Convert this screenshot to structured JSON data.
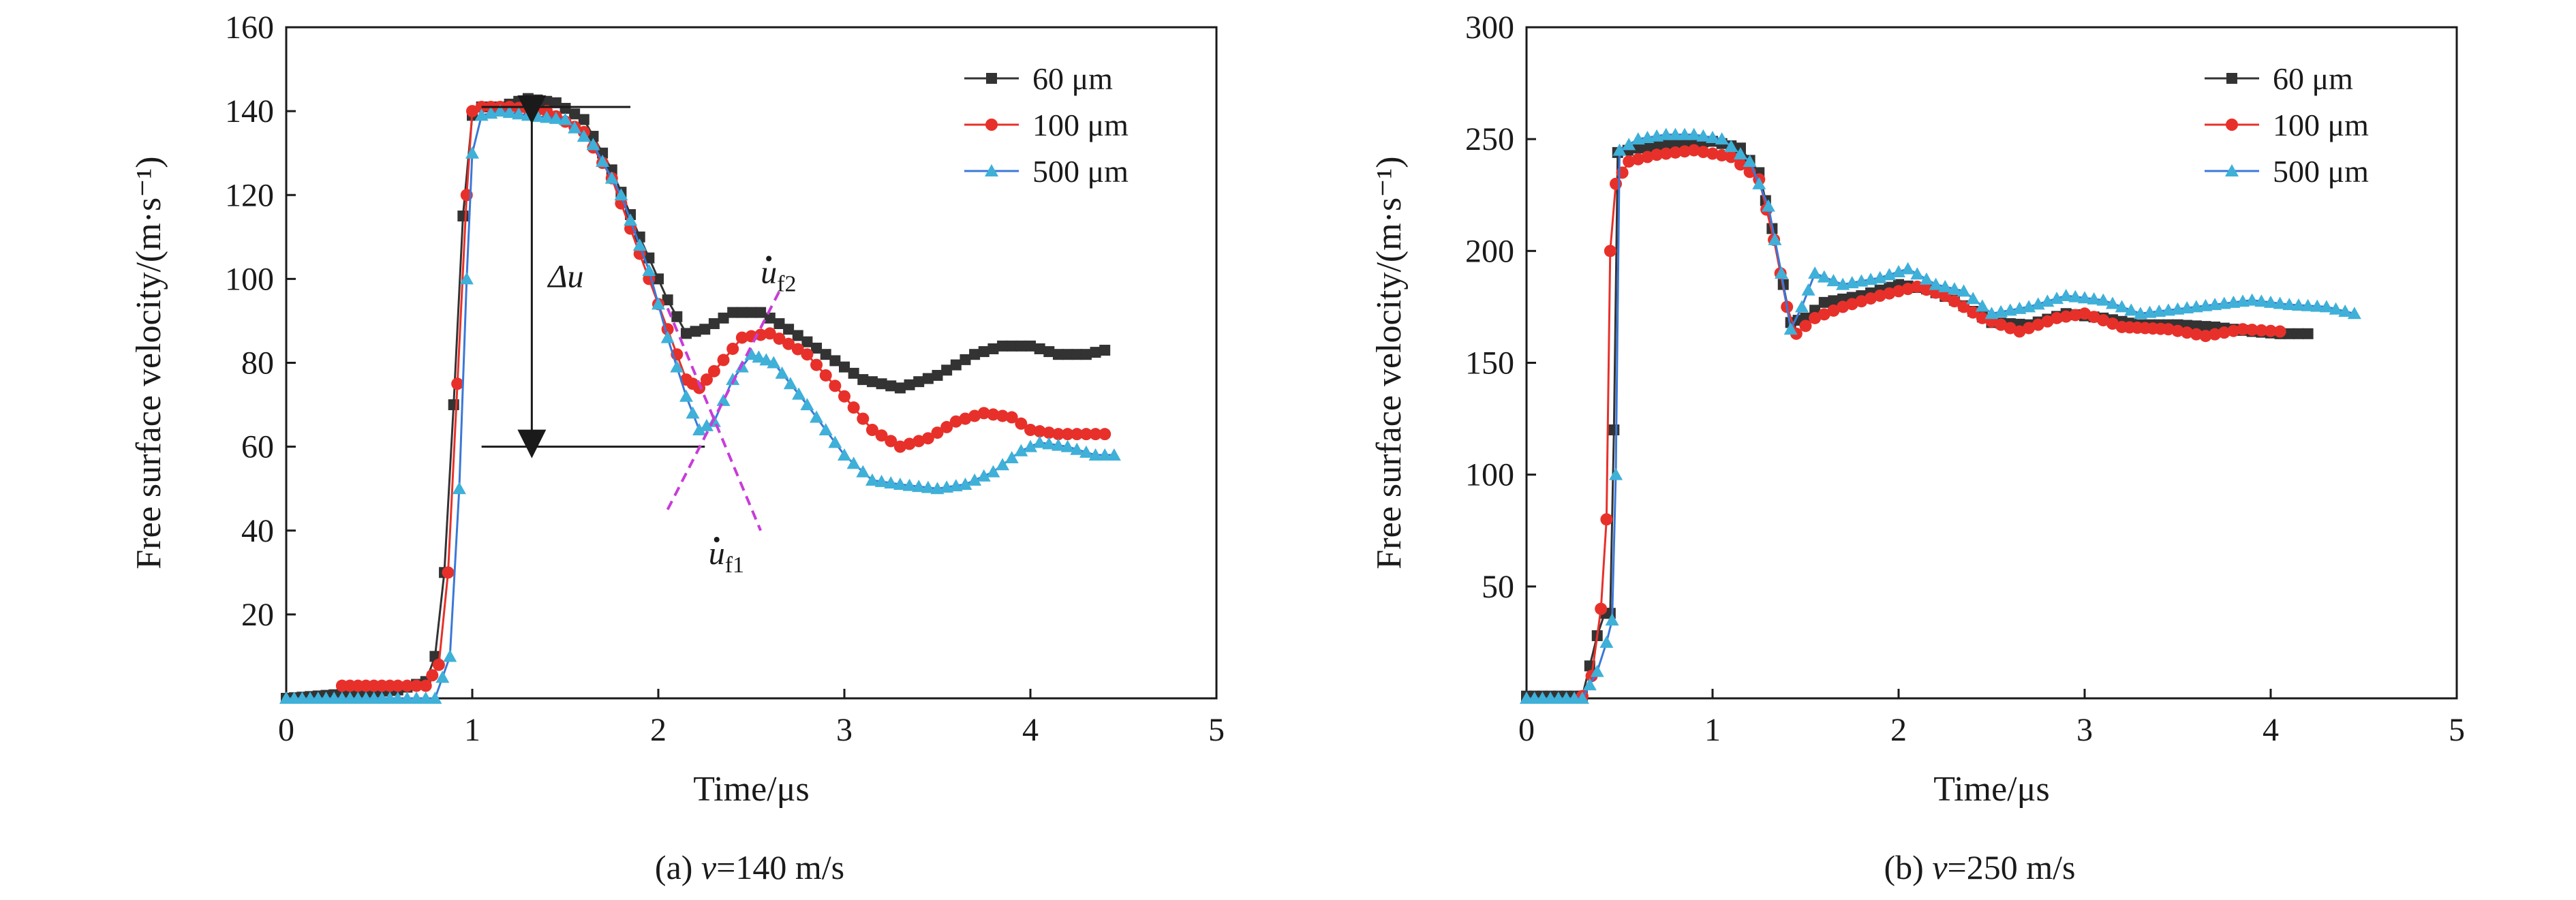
{
  "chart_data": [
    {
      "type": "line",
      "panel": "a",
      "caption_prefix": "(a) ",
      "caption_var": "v",
      "caption_rest": "=140 m/s",
      "xlabel": "Time/μs",
      "ylabel": "Free surface velocity/(m·s⁻¹)",
      "xlim": [
        0,
        5
      ],
      "ylim": [
        0,
        160
      ],
      "xticks": [
        0,
        1,
        2,
        3,
        4,
        5
      ],
      "yticks": [
        20,
        40,
        60,
        80,
        100,
        120,
        140,
        160
      ],
      "legend_position": "top-right",
      "series": [
        {
          "name": "60 μm",
          "marker": "square",
          "color": "#333333",
          "points": [
            [
              0.0,
              0
            ],
            [
              0.3,
              1
            ],
            [
              0.6,
              2
            ],
            [
              0.75,
              4
            ],
            [
              0.8,
              10
            ],
            [
              0.85,
              30
            ],
            [
              0.9,
              70
            ],
            [
              0.95,
              115
            ],
            [
              1.0,
              139
            ],
            [
              1.05,
              141
            ],
            [
              1.15,
              141
            ],
            [
              1.3,
              143
            ],
            [
              1.45,
              142
            ],
            [
              1.6,
              138
            ],
            [
              1.75,
              126
            ],
            [
              1.9,
              110
            ],
            [
              2.05,
              95
            ],
            [
              2.15,
              87
            ],
            [
              2.25,
              88
            ],
            [
              2.4,
              92
            ],
            [
              2.55,
              92
            ],
            [
              2.7,
              88
            ],
            [
              2.9,
              82
            ],
            [
              3.1,
              76
            ],
            [
              3.3,
              74
            ],
            [
              3.5,
              77
            ],
            [
              3.7,
              82
            ],
            [
              3.85,
              84
            ],
            [
              4.0,
              84
            ],
            [
              4.15,
              82
            ],
            [
              4.3,
              82
            ],
            [
              4.4,
              83
            ]
          ]
        },
        {
          "name": "100 μm",
          "marker": "circle",
          "color": "#e8302a",
          "points": [
            [
              0.3,
              3
            ],
            [
              0.6,
              3
            ],
            [
              0.75,
              3
            ],
            [
              0.82,
              8
            ],
            [
              0.87,
              30
            ],
            [
              0.92,
              75
            ],
            [
              0.97,
              120
            ],
            [
              1.0,
              140
            ],
            [
              1.05,
              141
            ],
            [
              1.2,
              141
            ],
            [
              1.4,
              140
            ],
            [
              1.6,
              135
            ],
            [
              1.75,
              124
            ],
            [
              1.9,
              106
            ],
            [
              2.05,
              88
            ],
            [
              2.15,
              76
            ],
            [
              2.22,
              74
            ],
            [
              2.3,
              78
            ],
            [
              2.45,
              86
            ],
            [
              2.6,
              87
            ],
            [
              2.8,
              82
            ],
            [
              3.0,
              72
            ],
            [
              3.15,
              64
            ],
            [
              3.3,
              60
            ],
            [
              3.45,
              62
            ],
            [
              3.6,
              66
            ],
            [
              3.75,
              68
            ],
            [
              3.9,
              67
            ],
            [
              4.0,
              64
            ],
            [
              4.15,
              63
            ],
            [
              4.3,
              63
            ],
            [
              4.4,
              63
            ]
          ]
        },
        {
          "name": "500 μm",
          "marker": "triangle",
          "color": "#3fb0d8",
          "lineColor": "#3a78d8",
          "points": [
            [
              0.0,
              0
            ],
            [
              0.3,
              0
            ],
            [
              0.6,
              0
            ],
            [
              0.8,
              0
            ],
            [
              0.88,
              10
            ],
            [
              0.93,
              50
            ],
            [
              0.97,
              100
            ],
            [
              1.0,
              130
            ],
            [
              1.05,
              139
            ],
            [
              1.15,
              140
            ],
            [
              1.3,
              139
            ],
            [
              1.5,
              138
            ],
            [
              1.65,
              132
            ],
            [
              1.8,
              120
            ],
            [
              1.95,
              102
            ],
            [
              2.05,
              86
            ],
            [
              2.15,
              72
            ],
            [
              2.22,
              64
            ],
            [
              2.3,
              66
            ],
            [
              2.4,
              76
            ],
            [
              2.5,
              82
            ],
            [
              2.62,
              80
            ],
            [
              2.8,
              70
            ],
            [
              3.0,
              58
            ],
            [
              3.15,
              52
            ],
            [
              3.3,
              51
            ],
            [
              3.5,
              50
            ],
            [
              3.65,
              51
            ],
            [
              3.8,
              54
            ],
            [
              3.95,
              59
            ],
            [
              4.05,
              61
            ],
            [
              4.2,
              60
            ],
            [
              4.35,
              58
            ],
            [
              4.45,
              58
            ]
          ]
        }
      ],
      "annotations": {
        "delta_u": "Δu",
        "uf2_main": "u",
        "uf2_sub": "f2",
        "uf1_main": "u",
        "uf1_sub": "f1"
      }
    },
    {
      "type": "line",
      "panel": "b",
      "caption_prefix": "(b) ",
      "caption_var": "v",
      "caption_rest": "=250 m/s",
      "xlabel": "Time/μs",
      "ylabel": "Free surface velocity/(m·s⁻¹)",
      "xlim": [
        0,
        5
      ],
      "ylim": [
        0,
        300
      ],
      "xticks": [
        0,
        1,
        2,
        3,
        4,
        5
      ],
      "yticks": [
        50,
        100,
        150,
        200,
        250,
        300
      ],
      "legend_position": "top-right",
      "series": [
        {
          "name": "60 μm",
          "marker": "square",
          "color": "#333333",
          "points": [
            [
              0.0,
              1
            ],
            [
              0.3,
              1
            ],
            [
              0.38,
              28
            ],
            [
              0.42,
              38
            ],
            [
              0.45,
              38
            ],
            [
              0.47,
              120
            ],
            [
              0.49,
              244
            ],
            [
              0.6,
              246
            ],
            [
              0.8,
              248
            ],
            [
              1.0,
              249
            ],
            [
              1.15,
              246
            ],
            [
              1.25,
              235
            ],
            [
              1.32,
              210
            ],
            [
              1.38,
              185
            ],
            [
              1.42,
              168
            ],
            [
              1.5,
              170
            ],
            [
              1.6,
              177
            ],
            [
              1.8,
              180
            ],
            [
              2.0,
              185
            ],
            [
              2.15,
              183
            ],
            [
              2.3,
              178
            ],
            [
              2.5,
              168
            ],
            [
              2.7,
              167
            ],
            [
              2.9,
              172
            ],
            [
              3.1,
              170
            ],
            [
              3.3,
              167
            ],
            [
              3.5,
              167
            ],
            [
              3.7,
              166
            ],
            [
              3.9,
              164
            ],
            [
              4.05,
              163
            ],
            [
              4.2,
              163
            ]
          ]
        },
        {
          "name": "100 μm",
          "marker": "circle",
          "color": "#e8302a",
          "points": [
            [
              0.3,
              1
            ],
            [
              0.35,
              10
            ],
            [
              0.4,
              40
            ],
            [
              0.43,
              80
            ],
            [
              0.45,
              200
            ],
            [
              0.48,
              230
            ],
            [
              0.55,
              240
            ],
            [
              0.7,
              243
            ],
            [
              0.9,
              245
            ],
            [
              1.1,
              242
            ],
            [
              1.25,
              232
            ],
            [
              1.33,
              205
            ],
            [
              1.4,
              175
            ],
            [
              1.45,
              163
            ],
            [
              1.55,
              170
            ],
            [
              1.7,
              175
            ],
            [
              1.9,
              180
            ],
            [
              2.1,
              184
            ],
            [
              2.25,
              180
            ],
            [
              2.45,
              170
            ],
            [
              2.65,
              164
            ],
            [
              2.85,
              170
            ],
            [
              3.0,
              172
            ],
            [
              3.2,
              166
            ],
            [
              3.45,
              165
            ],
            [
              3.65,
              162
            ],
            [
              3.85,
              165
            ],
            [
              4.05,
              164
            ]
          ]
        },
        {
          "name": "500 μm",
          "marker": "triangle",
          "color": "#3fb0d8",
          "lineColor": "#3a78d8",
          "points": [
            [
              0.0,
              0
            ],
            [
              0.3,
              0
            ],
            [
              0.38,
              12
            ],
            [
              0.43,
              25
            ],
            [
              0.46,
              35
            ],
            [
              0.48,
              100
            ],
            [
              0.5,
              245
            ],
            [
              0.6,
              250
            ],
            [
              0.75,
              252
            ],
            [
              0.9,
              252
            ],
            [
              1.05,
              250
            ],
            [
              1.2,
              240
            ],
            [
              1.3,
              220
            ],
            [
              1.37,
              190
            ],
            [
              1.42,
              165
            ],
            [
              1.48,
              175
            ],
            [
              1.55,
              190
            ],
            [
              1.7,
              185
            ],
            [
              1.9,
              188
            ],
            [
              2.05,
              192
            ],
            [
              2.2,
              185
            ],
            [
              2.35,
              182
            ],
            [
              2.5,
              172
            ],
            [
              2.7,
              175
            ],
            [
              2.9,
              180
            ],
            [
              3.1,
              178
            ],
            [
              3.3,
              172
            ],
            [
              3.5,
              174
            ],
            [
              3.7,
              176
            ],
            [
              3.9,
              178
            ],
            [
              4.1,
              176
            ],
            [
              4.3,
              175
            ],
            [
              4.45,
              172
            ]
          ]
        }
      ]
    }
  ]
}
